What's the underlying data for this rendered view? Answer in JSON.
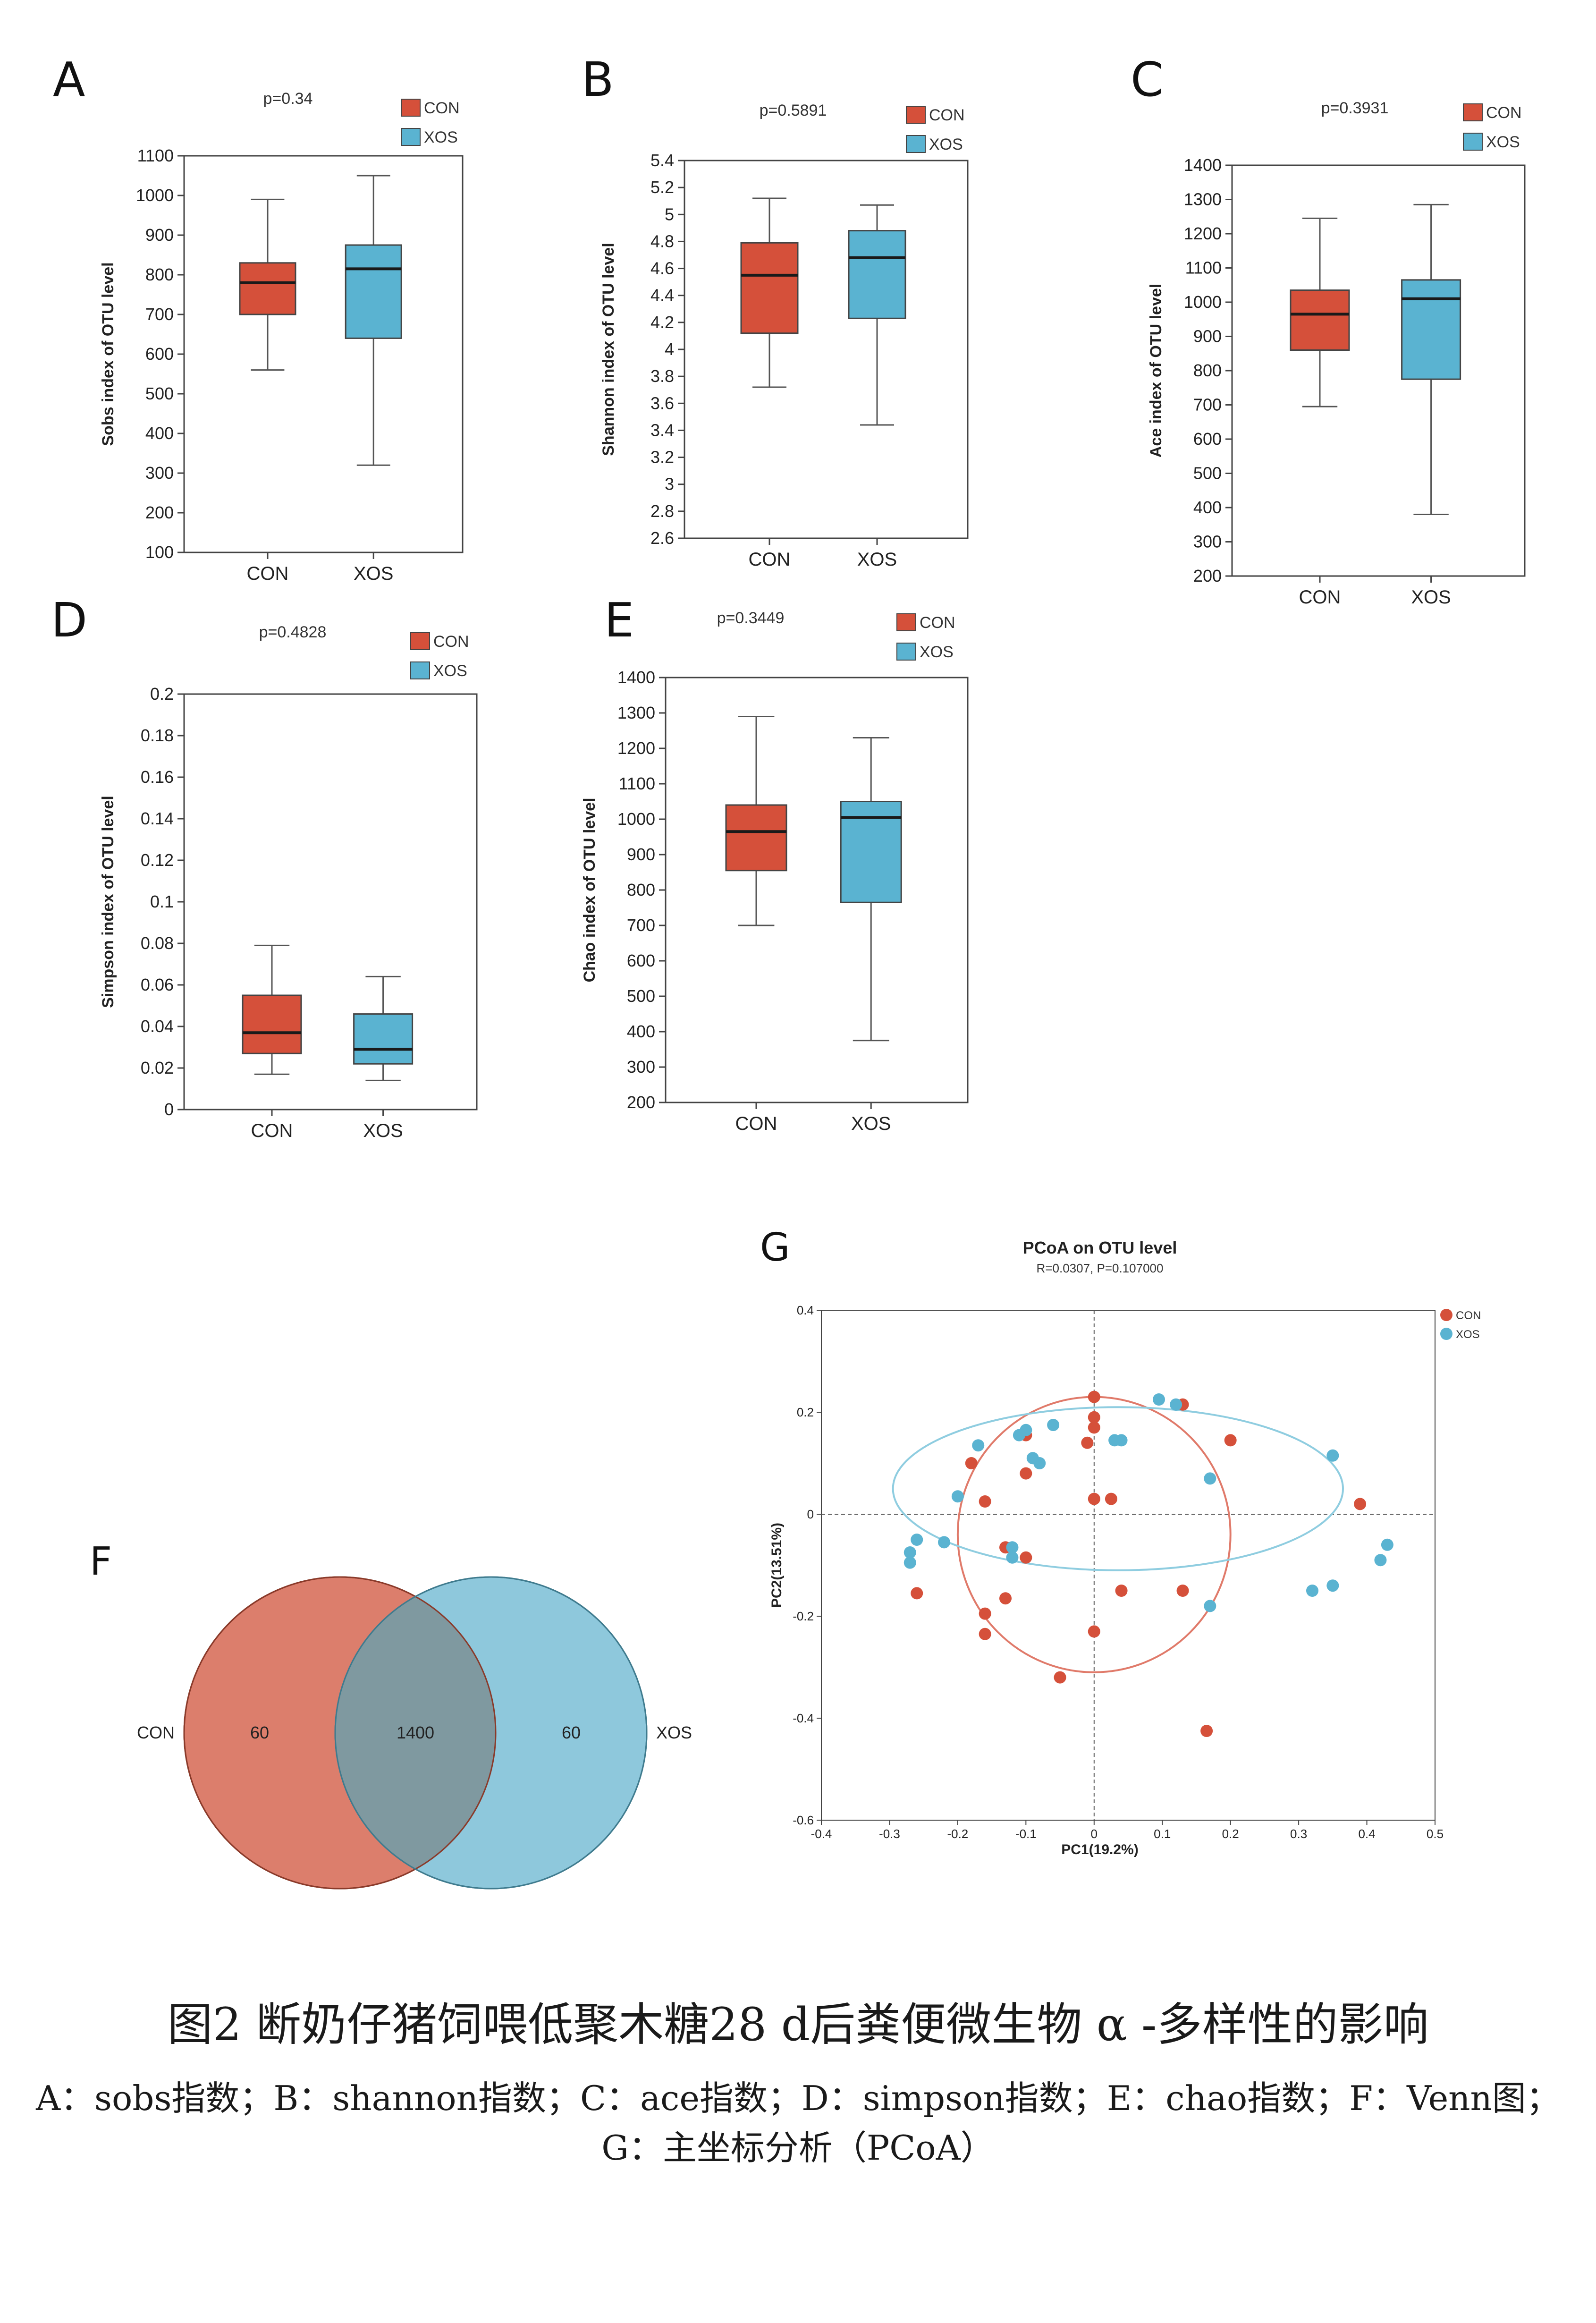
{
  "colors": {
    "CON": "#d5503a",
    "XOS": "#5ab3d1",
    "venn_con": "#dc7e6c",
    "venn_xos": "#8ec8dc",
    "venn_overlap": "#7f99a0",
    "ellipse_con": "#e07a6a",
    "ellipse_xos": "#8fcde0"
  },
  "panels": {
    "A": {
      "letter": "A",
      "p": "p=0.34"
    },
    "B": {
      "letter": "B",
      "p": "p=0.5891"
    },
    "C": {
      "letter": "C",
      "p": "p=0.3931"
    },
    "D": {
      "letter": "D",
      "p": "p=0.4828"
    },
    "E": {
      "letter": "E",
      "p": "p=0.3449"
    },
    "F": {
      "letter": "F"
    },
    "G": {
      "letter": "G"
    }
  },
  "legend": {
    "con": "CON",
    "xos": "XOS"
  },
  "caption": {
    "title": "图2 断奶仔猪饲喂低聚木糖28 d后粪便微生物 α -多样性的影响",
    "line1": "A：sobs指数；B：shannon指数；C：ace指数；D：simpson指数；E：chao指数；F：Venn图；",
    "line2": "G：主坐标分析（PCoA）"
  },
  "chart_data": [
    {
      "id": "A",
      "type": "box",
      "ylabel": "Sobs index of OTU level",
      "categories": [
        "CON",
        "XOS"
      ],
      "ylim": [
        100,
        1100
      ],
      "yticks": [
        "100",
        "200",
        "300",
        "400",
        "500",
        "600",
        "700",
        "800",
        "900",
        "1000",
        "1100"
      ],
      "boxes": [
        {
          "name": "CON",
          "min": 560,
          "q1": 700,
          "median": 780,
          "q3": 830,
          "max": 990
        },
        {
          "name": "XOS",
          "min": 320,
          "q1": 640,
          "median": 815,
          "q3": 875,
          "max": 1050
        }
      ]
    },
    {
      "id": "B",
      "type": "box",
      "ylabel": "Shannon index of OTU level",
      "categories": [
        "CON",
        "XOS"
      ],
      "ylim": [
        2.6,
        5.4
      ],
      "yticks": [
        "2.6",
        "2.8",
        "3",
        "3.2",
        "3.4",
        "3.6",
        "3.8",
        "4",
        "4.2",
        "4.4",
        "4.6",
        "4.8",
        "5",
        "5.2",
        "5.4"
      ],
      "boxes": [
        {
          "name": "CON",
          "min": 3.72,
          "q1": 4.12,
          "median": 4.55,
          "q3": 4.79,
          "max": 5.12
        },
        {
          "name": "XOS",
          "min": 3.44,
          "q1": 4.23,
          "median": 4.68,
          "q3": 4.88,
          "max": 5.07
        }
      ]
    },
    {
      "id": "C",
      "type": "box",
      "ylabel": "Ace index of OTU level",
      "categories": [
        "CON",
        "XOS"
      ],
      "ylim": [
        200,
        1400
      ],
      "yticks": [
        "200",
        "300",
        "400",
        "500",
        "600",
        "700",
        "800",
        "900",
        "1000",
        "1100",
        "1200",
        "1300",
        "1400"
      ],
      "boxes": [
        {
          "name": "CON",
          "min": 695,
          "q1": 860,
          "median": 965,
          "q3": 1035,
          "max": 1245
        },
        {
          "name": "XOS",
          "min": 380,
          "q1": 775,
          "median": 1010,
          "q3": 1065,
          "max": 1285
        }
      ]
    },
    {
      "id": "D",
      "type": "box",
      "ylabel": "Simpson index of OTU level",
      "categories": [
        "CON",
        "XOS"
      ],
      "ylim": [
        0,
        0.2
      ],
      "yticks": [
        "0",
        "0.02",
        "0.04",
        "0.06",
        "0.08",
        "0.1",
        "0.12",
        "0.14",
        "0.16",
        "0.18",
        "0.2"
      ],
      "boxes": [
        {
          "name": "CON",
          "min": 0.017,
          "q1": 0.027,
          "median": 0.037,
          "q3": 0.055,
          "max": 0.079
        },
        {
          "name": "XOS",
          "min": 0.014,
          "q1": 0.022,
          "median": 0.029,
          "q3": 0.046,
          "max": 0.064
        }
      ]
    },
    {
      "id": "E",
      "type": "box",
      "ylabel": "Chao index of OTU level",
      "categories": [
        "CON",
        "XOS"
      ],
      "ylim": [
        200,
        1400
      ],
      "yticks": [
        "200",
        "300",
        "400",
        "500",
        "600",
        "700",
        "800",
        "900",
        "1000",
        "1100",
        "1200",
        "1300",
        "1400"
      ],
      "boxes": [
        {
          "name": "CON",
          "min": 700,
          "q1": 855,
          "median": 965,
          "q3": 1040,
          "max": 1290
        },
        {
          "name": "XOS",
          "min": 375,
          "q1": 765,
          "median": 1005,
          "q3": 1050,
          "max": 1230
        }
      ]
    },
    {
      "id": "F",
      "type": "venn",
      "sets": [
        {
          "name": "CON",
          "only": "60"
        },
        {
          "name": "XOS",
          "only": "60"
        }
      ],
      "overlap": "1400"
    },
    {
      "id": "G",
      "type": "scatter",
      "title": "PCoA on OTU level",
      "subtitle": "R=0.0307, P=0.107000",
      "xlabel": "PC1(19.2%)",
      "ylabel": "PC2(13.51%)",
      "xlim": [
        -0.4,
        0.5
      ],
      "ylim": [
        -0.6,
        0.4
      ],
      "xticks": [
        "-0.4",
        "-0.3",
        "-0.2",
        "-0.1",
        "0",
        "0.1",
        "0.2",
        "0.3",
        "0.4",
        "0.5"
      ],
      "yticks": [
        "-0.6",
        "-0.4",
        "-0.2",
        "0",
        "0.2",
        "0.4"
      ],
      "ellipses": [
        {
          "name": "CON",
          "cx": 0.0,
          "cy": -0.04,
          "rx": 0.2,
          "ry": 0.27
        },
        {
          "name": "XOS",
          "cx": 0.035,
          "cy": 0.05,
          "rx": 0.33,
          "ry": 0.16
        }
      ],
      "series": [
        {
          "name": "CON",
          "points": [
            [
              0.0,
              0.23
            ],
            [
              0.0,
              0.19
            ],
            [
              0.13,
              0.215
            ],
            [
              0.0,
              0.17
            ],
            [
              -0.1,
              0.155
            ],
            [
              0.2,
              0.145
            ],
            [
              -0.01,
              0.14
            ],
            [
              -0.18,
              0.1
            ],
            [
              -0.1,
              0.08
            ],
            [
              -0.16,
              0.025
            ],
            [
              0.0,
              0.03
            ],
            [
              0.025,
              0.03
            ],
            [
              0.39,
              0.02
            ],
            [
              -0.13,
              -0.065
            ],
            [
              -0.1,
              -0.085
            ],
            [
              -0.26,
              -0.155
            ],
            [
              0.04,
              -0.15
            ],
            [
              0.13,
              -0.15
            ],
            [
              -0.13,
              -0.165
            ],
            [
              -0.16,
              -0.195
            ],
            [
              -0.16,
              -0.235
            ],
            [
              0.0,
              -0.23
            ],
            [
              -0.05,
              -0.32
            ],
            [
              0.165,
              -0.425
            ]
          ]
        },
        {
          "name": "XOS",
          "points": [
            [
              0.095,
              0.225
            ],
            [
              0.12,
              0.215
            ],
            [
              -0.06,
              0.175
            ],
            [
              -0.1,
              0.165
            ],
            [
              -0.11,
              0.155
            ],
            [
              0.03,
              0.145
            ],
            [
              0.04,
              0.145
            ],
            [
              -0.17,
              0.135
            ],
            [
              -0.09,
              0.11
            ],
            [
              -0.08,
              0.1
            ],
            [
              0.35,
              0.115
            ],
            [
              0.17,
              0.07
            ],
            [
              -0.2,
              0.035
            ],
            [
              -0.26,
              -0.05
            ],
            [
              -0.27,
              -0.075
            ],
            [
              -0.22,
              -0.055
            ],
            [
              -0.12,
              -0.065
            ],
            [
              -0.12,
              -0.085
            ],
            [
              -0.27,
              -0.095
            ],
            [
              0.43,
              -0.06
            ],
            [
              0.42,
              -0.09
            ],
            [
              0.35,
              -0.14
            ],
            [
              0.32,
              -0.15
            ],
            [
              0.17,
              -0.18
            ]
          ]
        }
      ]
    }
  ]
}
